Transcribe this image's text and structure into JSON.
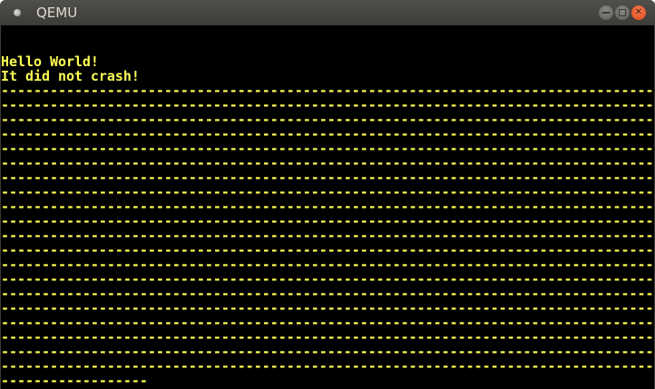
{
  "window": {
    "title": "QEMU",
    "buttons": {
      "minimize": "minimize-icon",
      "maximize": "maximize-icon",
      "close": "close-icon"
    },
    "close_color": "#e95420"
  },
  "screen": {
    "text_color": "#ffff55",
    "background": "#000000",
    "lines": [
      "",
      "",
      "Hello World!",
      "It did not crash!",
      "--------------------------------------------------------------------------------",
      "--------------------------------------------------------------------------------",
      "--------------------------------------------------------------------------------",
      "--------------------------------------------------------------------------------",
      "--------------------------------------------------------------------------------",
      "--------------------------------------------------------------------------------",
      "--------------------------------------------------------------------------------",
      "--------------------------------------------------------------------------------",
      "--------------------------------------------------------------------------------",
      "--------------------------------------------------------------------------------",
      "--------------------------------------------------------------------------------",
      "--------------------------------------------------------------------------------",
      "--------------------------------------------------------------------------------",
      "--------------------------------------------------------------------------------",
      "--------------------------------------------------------------------------------",
      "--------------------------------------------------------------------------------",
      "--------------------------------------------------------------------------------",
      "--------------------------------------------------------------------------------",
      "--------------------------------------------------------------------------------",
      "--------------------------------------------------------------------------------",
      "------------------"
    ]
  }
}
